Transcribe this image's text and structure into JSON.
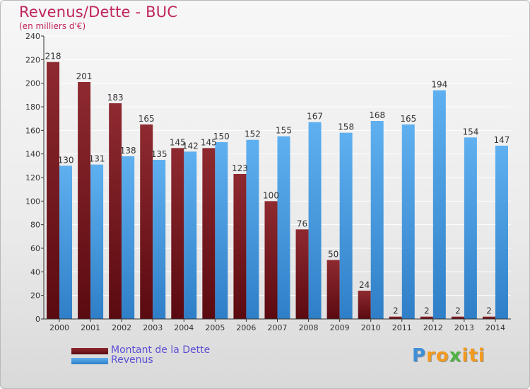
{
  "chart_data": {
    "type": "bar",
    "title": "Revenus/Dette - BUC",
    "subtitle": "(en milliers d'€)",
    "xlabel": "",
    "ylabel": "",
    "ylim": [
      0,
      240
    ],
    "yticks": [
      0,
      20,
      40,
      60,
      80,
      100,
      120,
      140,
      160,
      180,
      200,
      220,
      240
    ],
    "grid": true,
    "categories": [
      "2000",
      "2001",
      "2002",
      "2003",
      "2004",
      "2005",
      "2006",
      "2007",
      "2008",
      "2009",
      "2010",
      "2011",
      "2012",
      "2013",
      "2014"
    ],
    "series": [
      {
        "name": "Montant de la Dette",
        "color": "#7a1a22",
        "values": [
          218,
          201,
          183,
          165,
          145,
          145,
          123,
          100,
          76,
          50,
          24,
          2,
          2,
          2,
          2
        ]
      },
      {
        "name": "Revenus",
        "color": "#4fa3e8",
        "values": [
          130,
          131,
          138,
          135,
          142,
          150,
          152,
          155,
          167,
          158,
          168,
          165,
          194,
          154,
          147
        ]
      }
    ],
    "legend": [
      "Montant de la Dette",
      "Revenus"
    ],
    "legend_position": "bottom-left"
  },
  "logo": {
    "letters": [
      "P",
      "r",
      "o",
      "x",
      "i",
      "t",
      "i"
    ],
    "colors": [
      "#3f8fd8",
      "#f39a1c",
      "#f39a1c",
      "#4fb342",
      "#f39a1c",
      "#f39a1c",
      "#f39a1c"
    ]
  }
}
